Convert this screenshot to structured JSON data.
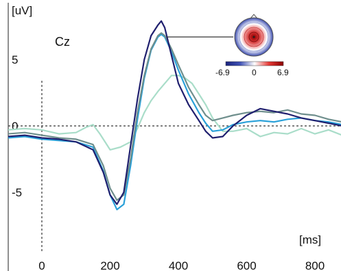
{
  "chart_data": {
    "type": "line",
    "title": "",
    "channel_label": "Cz",
    "xlabel": "[ms]",
    "ylabel": "[uV]",
    "xlim": [
      -100,
      880
    ],
    "ylim": [
      -11,
      10
    ],
    "x_ticks": [
      0,
      200,
      400,
      600,
      800
    ],
    "x_tick_labels": [
      "0",
      "200",
      "400",
      "600",
      "800"
    ],
    "y_ticks": [
      -5,
      0,
      5
    ],
    "y_tick_labels": [
      "-5",
      "0",
      "5"
    ],
    "grid": false,
    "legend": "none",
    "series": [
      {
        "color": "#1f1f6e",
        "x": [
          -100,
          -50,
          0,
          50,
          100,
          150,
          180,
          200,
          220,
          240,
          260,
          280,
          300,
          320,
          340,
          350,
          360,
          380,
          400,
          430,
          460,
          480,
          500,
          530,
          560,
          600,
          640,
          680,
          720,
          760,
          800,
          840,
          880
        ],
        "y": [
          -0.8,
          -0.7,
          -0.9,
          -1.0,
          -1.2,
          -1.8,
          -3.5,
          -5.2,
          -5.9,
          -5.0,
          -1.5,
          2.0,
          5.0,
          6.8,
          7.6,
          7.9,
          7.4,
          5.3,
          3.2,
          1.6,
          0.4,
          -0.4,
          -0.9,
          -0.8,
          0.0,
          0.8,
          1.3,
          1.1,
          0.9,
          0.6,
          0.4,
          0.2,
          0.0
        ]
      },
      {
        "color": "#6f8f8d",
        "x": [
          -100,
          -50,
          0,
          50,
          100,
          150,
          180,
          200,
          220,
          240,
          260,
          280,
          300,
          320,
          340,
          350,
          360,
          380,
          400,
          430,
          460,
          480,
          500,
          530,
          560,
          600,
          640,
          680,
          720,
          760,
          800,
          840,
          880
        ],
        "y": [
          -0.6,
          -0.5,
          -0.7,
          -0.9,
          -1.0,
          -1.4,
          -3.0,
          -4.7,
          -5.6,
          -5.2,
          -2.5,
          1.0,
          3.8,
          5.8,
          6.8,
          7.0,
          6.8,
          5.8,
          4.6,
          2.9,
          1.6,
          0.8,
          0.4,
          0.6,
          0.8,
          1.0,
          1.1,
          1.0,
          1.2,
          0.9,
          0.8,
          0.5,
          0.3
        ]
      },
      {
        "color": "#29a0d8",
        "x": [
          -100,
          -50,
          0,
          50,
          100,
          150,
          180,
          200,
          220,
          240,
          260,
          280,
          300,
          320,
          340,
          350,
          360,
          380,
          400,
          430,
          460,
          480,
          500,
          530,
          560,
          600,
          640,
          680,
          720,
          760,
          800,
          840,
          880
        ],
        "y": [
          -0.9,
          -0.8,
          -1.0,
          -1.1,
          -1.2,
          -1.6,
          -3.4,
          -5.2,
          -6.3,
          -5.9,
          -3.0,
          0.5,
          3.6,
          5.7,
          6.7,
          6.9,
          6.7,
          5.6,
          4.2,
          2.4,
          1.0,
          0.2,
          -0.4,
          -0.3,
          0.1,
          0.3,
          0.4,
          0.3,
          0.5,
          0.6,
          0.4,
          0.3,
          0.1
        ]
      },
      {
        "color": "#a9ddc9",
        "x": [
          -100,
          -50,
          0,
          50,
          100,
          130,
          150,
          170,
          200,
          230,
          260,
          280,
          300,
          320,
          340,
          360,
          380,
          400,
          420,
          440,
          460,
          480,
          500,
          530,
          560,
          600,
          640,
          680,
          720,
          760,
          800,
          840,
          880
        ],
        "y": [
          -0.3,
          -0.2,
          -0.3,
          -0.6,
          -0.5,
          -0.1,
          0.1,
          -0.6,
          -1.8,
          -1.6,
          -1.2,
          -0.2,
          1.0,
          1.9,
          2.6,
          3.2,
          3.8,
          3.8,
          3.6,
          3.2,
          2.4,
          1.6,
          0.6,
          -0.4,
          -0.4,
          -0.2,
          -0.8,
          -0.5,
          -0.6,
          -0.2,
          -0.6,
          -0.3,
          -0.7
        ]
      }
    ]
  },
  "topomap": {
    "min_label": "-6.9",
    "mid_label": "0",
    "max_label": "6.9",
    "colors": {
      "negative": "#1a237e",
      "neutral": "#ffffff",
      "positive": "#8b0000"
    }
  }
}
